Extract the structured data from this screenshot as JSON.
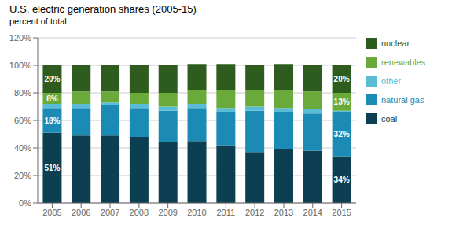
{
  "chart_data": {
    "type": "bar",
    "title": "U.S. electric generation shares (2005-15)",
    "subtitle": "percent of total",
    "categories": [
      "2005",
      "2006",
      "2007",
      "2008",
      "2009",
      "2010",
      "2011",
      "2012",
      "2013",
      "2014",
      "2015"
    ],
    "stacked": true,
    "grid": true,
    "legend": "right",
    "data_labels": true,
    "ylim": [
      0,
      120
    ],
    "yticks": [
      {
        "value": 0,
        "label": "0%"
      },
      {
        "value": 20,
        "label": "20%"
      },
      {
        "value": 40,
        "label": "40%"
      },
      {
        "value": 60,
        "label": "60%"
      },
      {
        "value": 80,
        "label": "80%"
      },
      {
        "value": 100,
        "label": "100%"
      },
      {
        "value": 120,
        "label": "120%"
      }
    ],
    "series": [
      {
        "name": "coal",
        "color": "#0d3f52",
        "values": [
          51,
          49,
          49,
          48,
          44,
          45,
          42,
          37,
          39,
          38,
          34
        ],
        "value_labels": [
          "51%",
          null,
          null,
          null,
          null,
          null,
          null,
          null,
          null,
          null,
          "34%"
        ]
      },
      {
        "name": "natural gas",
        "color": "#1b8bb5",
        "values": [
          18,
          20,
          22,
          21,
          23,
          24,
          24,
          30,
          27,
          27,
          32
        ],
        "value_labels": [
          "18%",
          null,
          null,
          null,
          null,
          null,
          null,
          null,
          null,
          null,
          "32%"
        ]
      },
      {
        "name": "other",
        "color": "#5bbcd6",
        "values": [
          3,
          3,
          2,
          3,
          3,
          3,
          3,
          3,
          3,
          3,
          1
        ]
      },
      {
        "name": "renewables",
        "color": "#6aaa3a",
        "values": [
          8,
          9,
          8,
          8,
          10,
          10,
          13,
          12,
          13,
          13,
          13
        ],
        "value_labels": [
          "8%",
          null,
          null,
          null,
          null,
          null,
          null,
          null,
          null,
          null,
          "13%"
        ]
      },
      {
        "name": "nuclear",
        "color": "#2d5c1e",
        "values": [
          20,
          19,
          19,
          20,
          20,
          19,
          19,
          18,
          19,
          19,
          20
        ],
        "value_labels": [
          "20%",
          null,
          null,
          null,
          null,
          null,
          null,
          null,
          null,
          null,
          "20%"
        ]
      }
    ]
  }
}
